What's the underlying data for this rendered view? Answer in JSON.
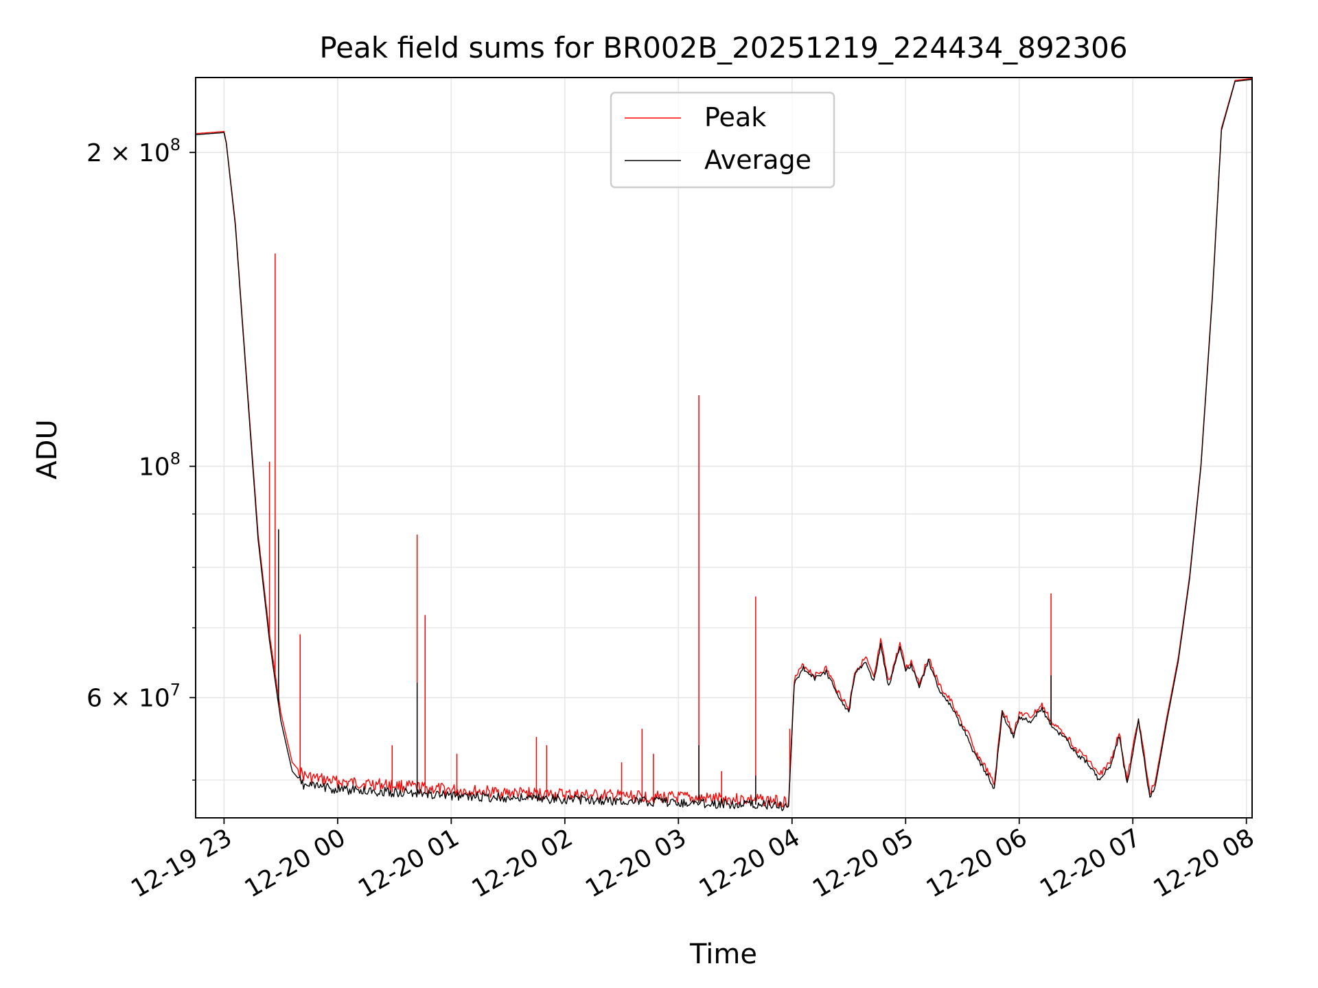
{
  "chart_data": {
    "type": "line",
    "title": "Peak field sums for BR002B_20251219_224434_892306",
    "xlabel": "Time",
    "ylabel": "ADU",
    "yscale": "log",
    "ylim": [
      46000000,
      236000000
    ],
    "xlim_hours": [
      -1.25,
      8.05
    ],
    "x_unit": "hours relative to 12-20 00:00",
    "grid": true,
    "legend_position": "upper center",
    "x_ticks": [
      {
        "value": -1,
        "label": "12-19 23"
      },
      {
        "value": 0,
        "label": "12-20 00"
      },
      {
        "value": 1,
        "label": "12-20 01"
      },
      {
        "value": 2,
        "label": "12-20 02"
      },
      {
        "value": 3,
        "label": "12-20 03"
      },
      {
        "value": 4,
        "label": "12-20 04"
      },
      {
        "value": 5,
        "label": "12-20 05"
      },
      {
        "value": 6,
        "label": "12-20 06"
      },
      {
        "value": 7,
        "label": "12-20 07"
      },
      {
        "value": 8,
        "label": "12-20 08"
      }
    ],
    "y_major_ticks": [
      {
        "value": 60000000,
        "label_base": "6 × 10",
        "label_exp": "7"
      },
      {
        "value": 100000000,
        "label_base": "10",
        "label_exp": "8"
      },
      {
        "value": 200000000,
        "label_base": "2 × 10",
        "label_exp": "8"
      }
    ],
    "y_minor_ticks": [
      50000000,
      70000000,
      80000000,
      90000000
    ],
    "series": [
      {
        "name": "Average",
        "color": "#000000",
        "x": [
          -1.25,
          -1.0,
          -0.98,
          -0.9,
          -0.8,
          -0.7,
          -0.6,
          -0.5,
          -0.4,
          -0.3,
          -0.2,
          -0.1,
          0.0,
          0.3,
          0.6,
          0.9,
          1.2,
          1.5,
          1.8,
          2.1,
          2.4,
          2.7,
          3.0,
          3.3,
          3.6,
          3.8,
          3.97,
          4.02,
          4.1,
          4.2,
          4.3,
          4.4,
          4.5,
          4.55,
          4.65,
          4.72,
          4.78,
          4.85,
          4.95,
          5.0,
          5.05,
          5.12,
          5.2,
          5.3,
          5.4,
          5.5,
          5.55,
          5.6,
          5.7,
          5.78,
          5.85,
          5.95,
          6.0,
          6.1,
          6.2,
          6.3,
          6.4,
          6.5,
          6.6,
          6.7,
          6.8,
          6.88,
          6.95,
          7.05,
          7.15,
          7.2,
          7.3,
          7.4,
          7.5,
          7.6,
          7.7,
          7.78,
          7.9,
          8.05
        ],
        "values": [
          208000000,
          209000000,
          204000000,
          170000000,
          120000000,
          85000000,
          68000000,
          57000000,
          51000000,
          49500000,
          49300000,
          49200000,
          49000000,
          48800000,
          48600000,
          48400000,
          48200000,
          48100000,
          48000000,
          47900000,
          47800000,
          47700000,
          47600000,
          47500000,
          47400000,
          47300000,
          47200000,
          62000000,
          64000000,
          62500000,
          63500000,
          60500000,
          58000000,
          63000000,
          65000000,
          62000000,
          67500000,
          61500000,
          67000000,
          63500000,
          64500000,
          61500000,
          65000000,
          61000000,
          59000000,
          56000000,
          55000000,
          53000000,
          51000000,
          49000000,
          58000000,
          55000000,
          57500000,
          57000000,
          58500000,
          56000000,
          55000000,
          53000000,
          52000000,
          50000000,
          51500000,
          55000000,
          49500000,
          57000000,
          48000000,
          49500000,
          57000000,
          65000000,
          78000000,
          100000000,
          145000000,
          210000000,
          234000000,
          235000000
        ]
      },
      {
        "name": "Peak",
        "color": "#ff0000",
        "x": [
          -1.25,
          -1.0,
          -0.98,
          -0.9,
          -0.8,
          -0.7,
          -0.6,
          -0.5,
          -0.4,
          -0.3,
          -0.2,
          -0.1,
          0.0,
          0.3,
          0.6,
          0.9,
          1.2,
          1.5,
          1.8,
          2.1,
          2.4,
          2.7,
          3.0,
          3.3,
          3.6,
          3.8,
          3.97,
          4.02,
          4.1,
          4.2,
          4.3,
          4.4,
          4.5,
          4.55,
          4.65,
          4.72,
          4.78,
          4.85,
          4.95,
          5.0,
          5.05,
          5.12,
          5.2,
          5.3,
          5.4,
          5.5,
          5.55,
          5.6,
          5.7,
          5.78,
          5.85,
          5.95,
          6.0,
          6.1,
          6.2,
          6.3,
          6.4,
          6.5,
          6.6,
          6.7,
          6.8,
          6.88,
          6.95,
          7.05,
          7.15,
          7.2,
          7.3,
          7.4,
          7.5,
          7.6,
          7.7,
          7.78,
          7.9,
          8.05
        ],
        "values": [
          208500000,
          209500000,
          204500000,
          171000000,
          121000000,
          86000000,
          69000000,
          58000000,
          52000000,
          50500000,
          50200000,
          50000000,
          49800000,
          49600000,
          49300000,
          49000000,
          48800000,
          48600000,
          48500000,
          48400000,
          48300000,
          48200000,
          48100000,
          48000000,
          47900000,
          47800000,
          47700000,
          62500000,
          64500000,
          63000000,
          64000000,
          61000000,
          58500000,
          63500000,
          65500000,
          62500000,
          68000000,
          62000000,
          67500000,
          64000000,
          65000000,
          62000000,
          65500000,
          61500000,
          59500000,
          56500000,
          55500000,
          53500000,
          51500000,
          49500000,
          58500000,
          55500000,
          58000000,
          57500000,
          59000000,
          56500000,
          55500000,
          53500000,
          52500000,
          50500000,
          52000000,
          55500000,
          50000000,
          57500000,
          48500000,
          50000000,
          57500000,
          65500000,
          78500000,
          100500000,
          146000000,
          211000000,
          234500000,
          235500000
        ]
      }
    ],
    "peak_spikes": [
      {
        "x": -0.55,
        "value": 160000000
      },
      {
        "x": -0.6,
        "value": 101000000
      },
      {
        "x": -0.52,
        "value": 87000000
      },
      {
        "x": -0.33,
        "value": 69000000
      },
      {
        "x": 0.48,
        "value": 54000000
      },
      {
        "x": 0.7,
        "value": 86000000
      },
      {
        "x": 0.77,
        "value": 72000000
      },
      {
        "x": 1.05,
        "value": 53000000
      },
      {
        "x": 1.75,
        "value": 55000000
      },
      {
        "x": 1.84,
        "value": 54000000
      },
      {
        "x": 2.5,
        "value": 52000000
      },
      {
        "x": 2.68,
        "value": 56000000
      },
      {
        "x": 2.78,
        "value": 53000000
      },
      {
        "x": 3.18,
        "value": 117000000
      },
      {
        "x": 3.38,
        "value": 51000000
      },
      {
        "x": 3.68,
        "value": 75000000
      },
      {
        "x": 3.98,
        "value": 56000000
      },
      {
        "x": 6.28,
        "value": 75500000
      }
    ],
    "average_spikes": [
      {
        "x": -0.52,
        "value": 87000000
      },
      {
        "x": 0.7,
        "value": 62000000
      },
      {
        "x": 3.18,
        "value": 54000000
      },
      {
        "x": 3.68,
        "value": 50500000
      },
      {
        "x": 6.28,
        "value": 63000000
      }
    ]
  }
}
